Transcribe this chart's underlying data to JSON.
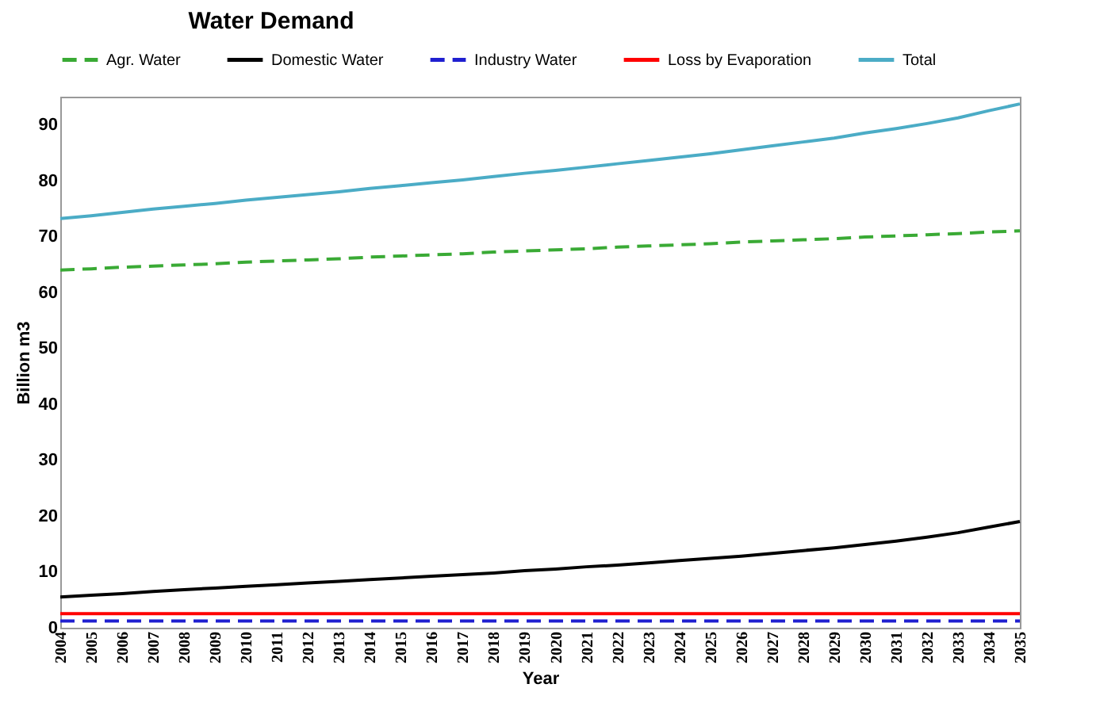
{
  "chart_data": {
    "type": "line",
    "title": "Water Demand",
    "xlabel": "Year",
    "ylabel": "Billion m3",
    "categories": [
      "2004",
      "2005",
      "2006",
      "2007",
      "2008",
      "2009",
      "2010",
      "2011",
      "2012",
      "2013",
      "2014",
      "2015",
      "2016",
      "2017",
      "2018",
      "2019",
      "2020",
      "2021",
      "2022",
      "2023",
      "2024",
      "2025",
      "2026",
      "2027",
      "2028",
      "2029",
      "2030",
      "2031",
      "2032",
      "2033",
      "2034",
      "2035"
    ],
    "series": [
      {
        "name": "Agr. Water",
        "color": "#3aaa35",
        "line_style": "dashed",
        "values": [
          64.0,
          64.2,
          64.5,
          64.7,
          64.9,
          65.1,
          65.4,
          65.6,
          65.8,
          66.0,
          66.3,
          66.5,
          66.7,
          66.9,
          67.2,
          67.4,
          67.6,
          67.8,
          68.1,
          68.3,
          68.5,
          68.7,
          69.0,
          69.2,
          69.4,
          69.6,
          69.9,
          70.1,
          70.3,
          70.5,
          70.8,
          71.0
        ]
      },
      {
        "name": "Domestic Water",
        "color": "#000000",
        "line_style": "solid",
        "values": [
          5.5,
          5.8,
          6.1,
          6.5,
          6.8,
          7.1,
          7.4,
          7.7,
          8.0,
          8.3,
          8.6,
          8.9,
          9.2,
          9.5,
          9.8,
          10.2,
          10.5,
          10.9,
          11.2,
          11.6,
          12.0,
          12.4,
          12.8,
          13.3,
          13.8,
          14.3,
          14.9,
          15.5,
          16.2,
          17.0,
          18.0,
          19.0
        ]
      },
      {
        "name": "Industry Water",
        "color": "#1f1fd0",
        "line_style": "dashed",
        "values": [
          1.2,
          1.2,
          1.2,
          1.2,
          1.2,
          1.2,
          1.2,
          1.2,
          1.2,
          1.2,
          1.2,
          1.2,
          1.2,
          1.2,
          1.2,
          1.2,
          1.2,
          1.2,
          1.2,
          1.2,
          1.2,
          1.2,
          1.2,
          1.2,
          1.2,
          1.2,
          1.2,
          1.2,
          1.2,
          1.2,
          1.2,
          1.2
        ]
      },
      {
        "name": "Loss by Evaporation",
        "color": "#ff0000",
        "line_style": "solid",
        "values": [
          2.5,
          2.5,
          2.5,
          2.5,
          2.5,
          2.5,
          2.5,
          2.5,
          2.5,
          2.5,
          2.5,
          2.5,
          2.5,
          2.5,
          2.5,
          2.5,
          2.5,
          2.5,
          2.5,
          2.5,
          2.5,
          2.5,
          2.5,
          2.5,
          2.5,
          2.5,
          2.5,
          2.5,
          2.5,
          2.5,
          2.5,
          2.5
        ]
      },
      {
        "name": "Total",
        "color": "#4bacc6",
        "line_style": "solid",
        "values": [
          73.2,
          73.7,
          74.3,
          74.9,
          75.4,
          75.9,
          76.5,
          77.0,
          77.5,
          78.0,
          78.6,
          79.1,
          79.6,
          80.1,
          80.7,
          81.3,
          81.8,
          82.4,
          83.0,
          83.6,
          84.2,
          84.8,
          85.5,
          86.2,
          86.9,
          87.6,
          88.5,
          89.3,
          90.2,
          91.2,
          92.5,
          93.7
        ]
      }
    ],
    "ylim": [
      0,
      95
    ],
    "yticks": [
      0,
      10,
      20,
      30,
      40,
      50,
      60,
      70,
      80,
      90
    ],
    "grid": false,
    "legend": "top"
  }
}
